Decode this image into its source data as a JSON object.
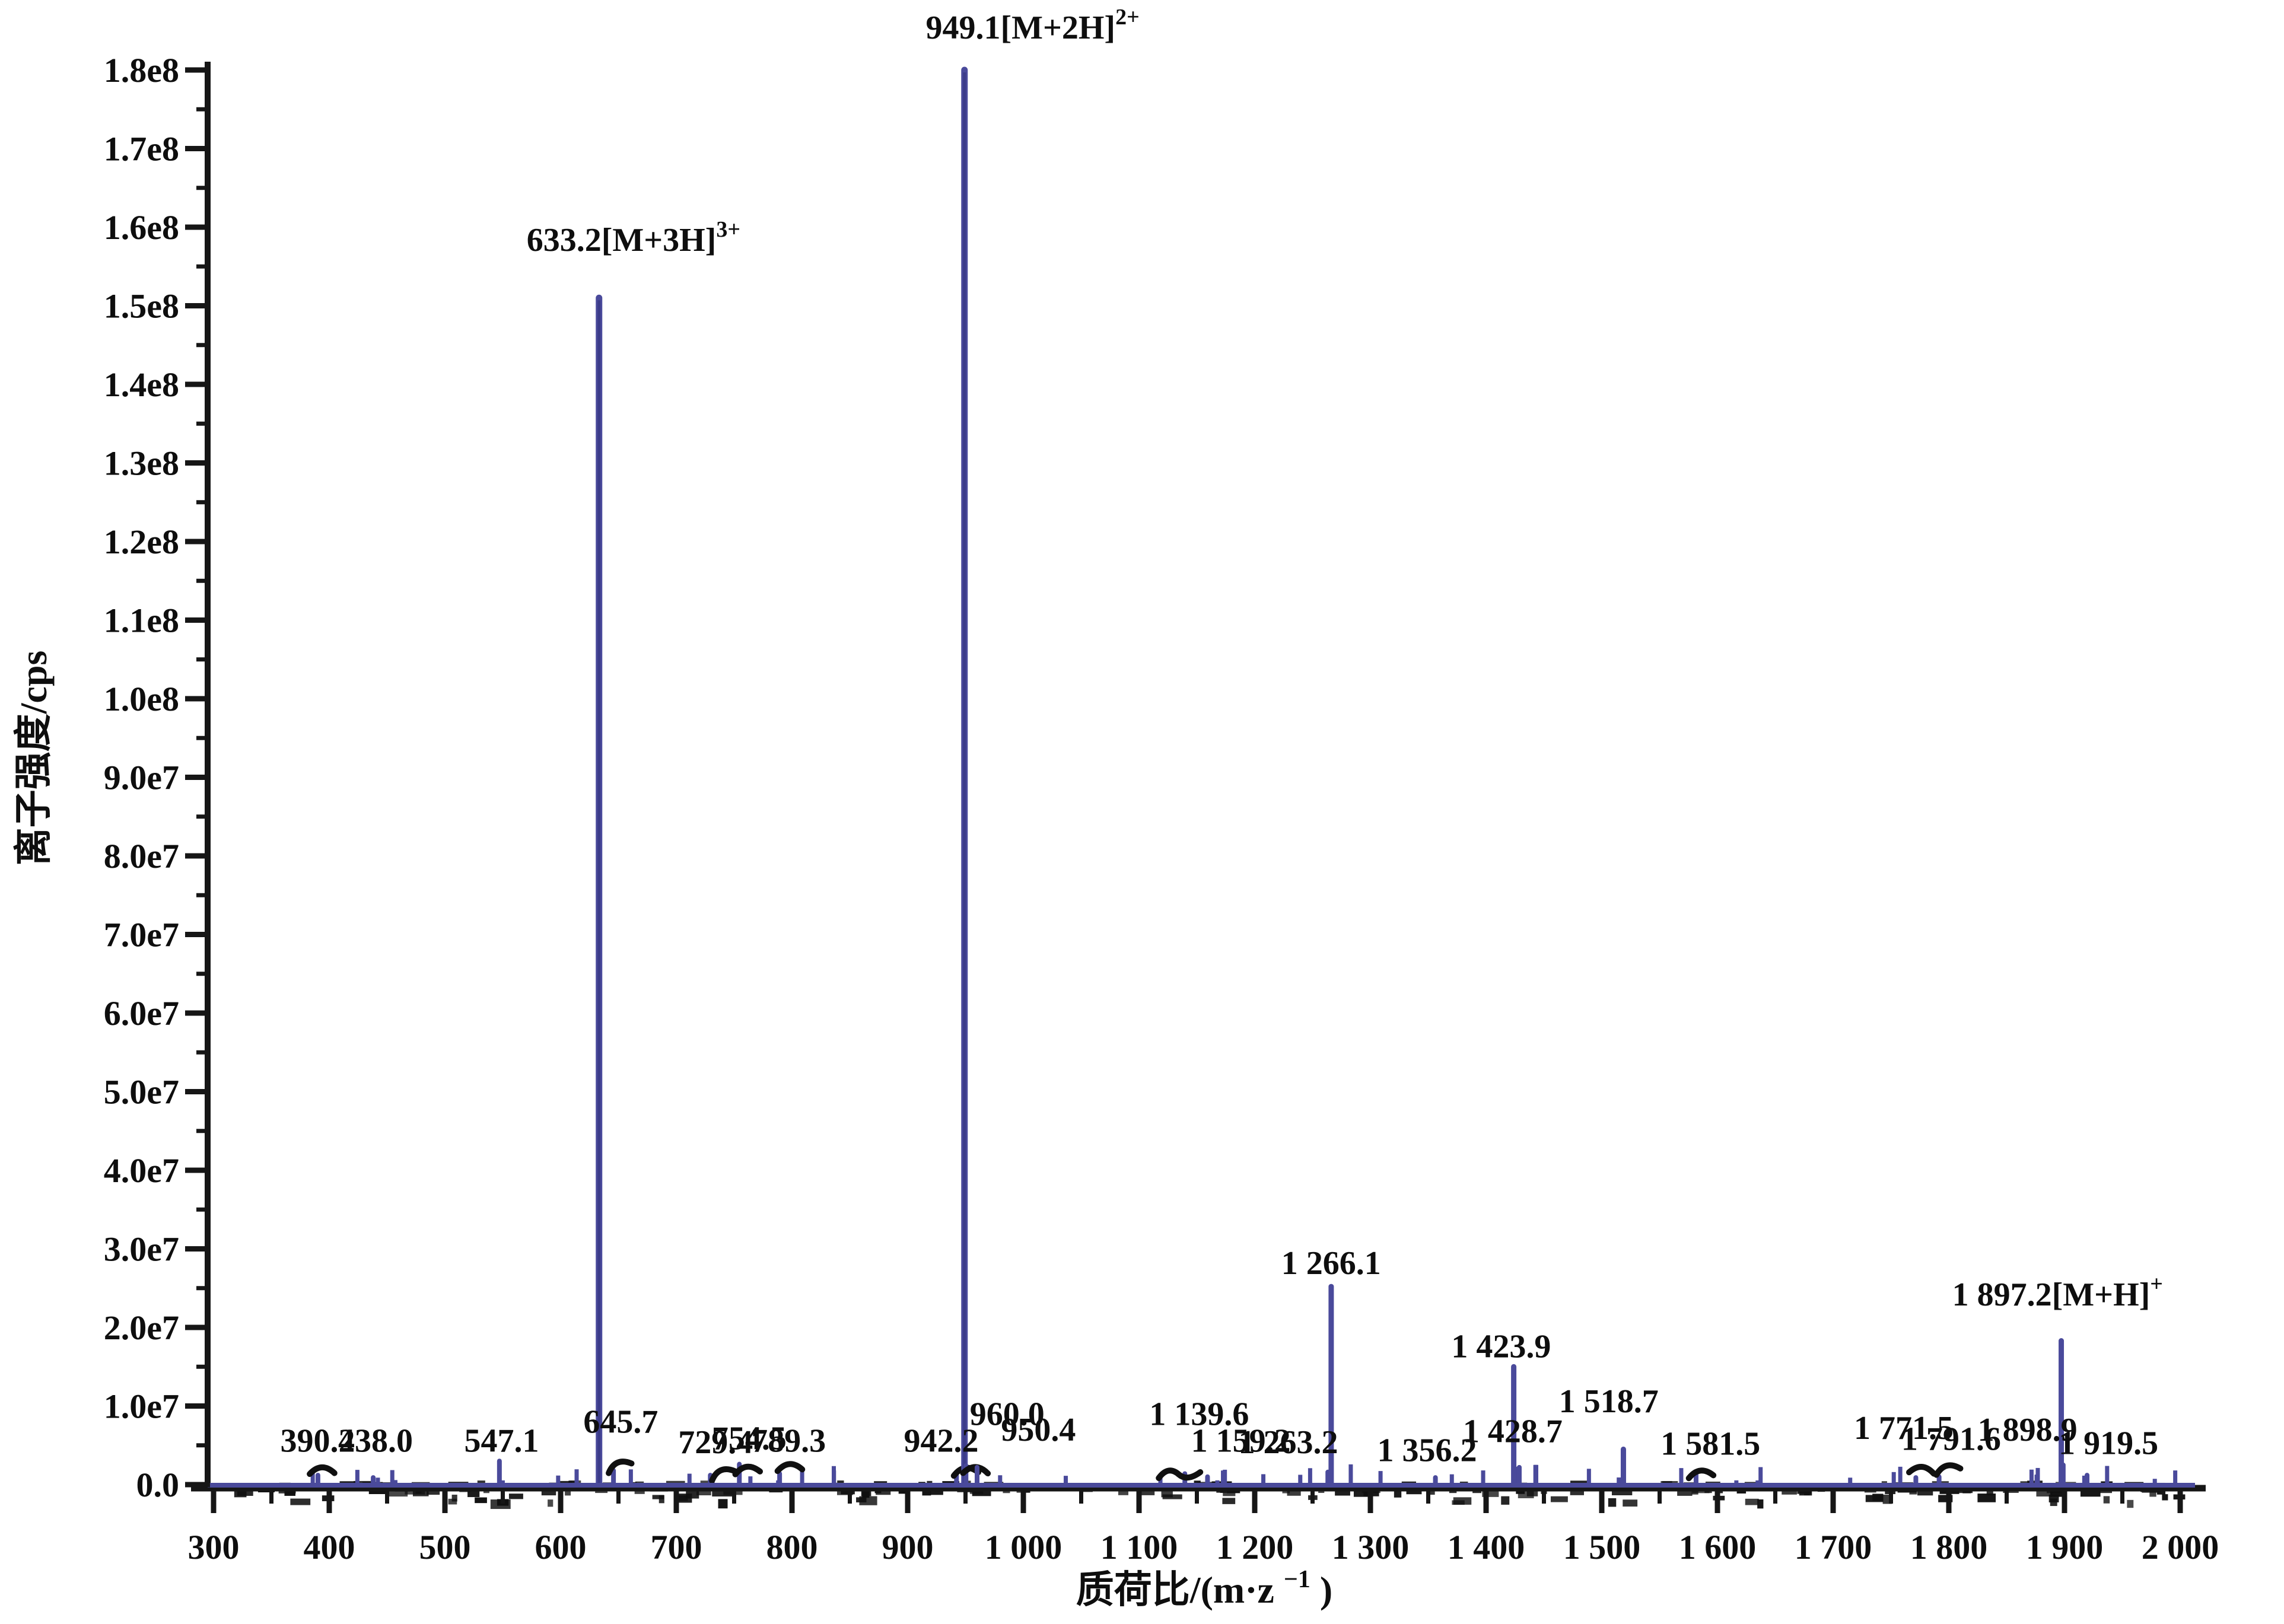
{
  "figure": {
    "background": "#ffffff"
  },
  "chart_data": {
    "type": "bar",
    "subtype": "mass-spectrum-sticks",
    "title": "",
    "ylabel": "离子强度/cps",
    "xlabel_main": "质荷比/(m·z",
    "xlabel_sup": "−1",
    "xlabel_close": ")",
    "xlim": [
      300,
      2000
    ],
    "ylim": [
      0,
      180000000
    ],
    "x_major_step": 100,
    "x_minor_step": 50,
    "y_major_step": 10000000,
    "y_minor_step": 5000000,
    "grid": false,
    "legend": null,
    "baseline_noise": true,
    "colors": {
      "peak": "#4a4a9b",
      "peak_core": "#3c3c8a",
      "axis": "#161616",
      "text": "#0e0e0e",
      "noise": "#101010",
      "background": "#ffffff"
    },
    "x_ticks": [
      {
        "v": 300,
        "label": "300"
      },
      {
        "v": 400,
        "label": "400"
      },
      {
        "v": 500,
        "label": "500"
      },
      {
        "v": 600,
        "label": "600"
      },
      {
        "v": 700,
        "label": "700"
      },
      {
        "v": 800,
        "label": "800"
      },
      {
        "v": 900,
        "label": "900"
      },
      {
        "v": 1000,
        "label": "1 000"
      },
      {
        "v": 1100,
        "label": "1 100"
      },
      {
        "v": 1200,
        "label": "1 200"
      },
      {
        "v": 1300,
        "label": "1 300"
      },
      {
        "v": 1400,
        "label": "1 400"
      },
      {
        "v": 1500,
        "label": "1 500"
      },
      {
        "v": 1600,
        "label": "1 600"
      },
      {
        "v": 1700,
        "label": "1 700"
      },
      {
        "v": 1800,
        "label": "1 800"
      },
      {
        "v": 1900,
        "label": "1 900"
      },
      {
        "v": 2000,
        "label": "2 000"
      }
    ],
    "y_ticks": [
      {
        "v": 0,
        "label": "0.0"
      },
      {
        "v": 10000000,
        "label": "1.0e7"
      },
      {
        "v": 20000000,
        "label": "2.0e7"
      },
      {
        "v": 30000000,
        "label": "3.0e7"
      },
      {
        "v": 40000000,
        "label": "4.0e7"
      },
      {
        "v": 50000000,
        "label": "5.0e7"
      },
      {
        "v": 60000000,
        "label": "6.0e7"
      },
      {
        "v": 70000000,
        "label": "7.0e7"
      },
      {
        "v": 80000000,
        "label": "8.0e7"
      },
      {
        "v": 90000000,
        "label": "9.0e7"
      },
      {
        "v": 100000000,
        "label": "1.0e8"
      },
      {
        "v": 110000000,
        "label": "1.1e8"
      },
      {
        "v": 120000000,
        "label": "1.2e8"
      },
      {
        "v": 130000000,
        "label": "1.3e8"
      },
      {
        "v": 140000000,
        "label": "1.4e8"
      },
      {
        "v": 150000000,
        "label": "1.5e8"
      },
      {
        "v": 160000000,
        "label": "1.6e8"
      },
      {
        "v": 170000000,
        "label": "1.7e8"
      },
      {
        "v": 180000000,
        "label": "1.8e8"
      }
    ],
    "peaks": [
      {
        "mz": 390.2,
        "intensity": 1200000,
        "label": "390.2",
        "sup": null,
        "label_x": 390,
        "label_y": 4200000,
        "squiggle": 1
      },
      {
        "mz": 438.0,
        "intensity": 900000,
        "label": "438.0",
        "sup": null,
        "label_x": 440,
        "label_y": 4200000,
        "squiggle": 0
      },
      {
        "mz": 547.1,
        "intensity": 3000000,
        "label": "547.1",
        "sup": null,
        "label_x": 549,
        "label_y": 4200000,
        "squiggle": 0
      },
      {
        "mz": 633.2,
        "intensity": 151000000,
        "label": "633.2[M+3H]",
        "sup": "3+",
        "label_x": 663,
        "label_y": 157000000,
        "squiggle": 0
      },
      {
        "mz": 645.7,
        "intensity": 1800000,
        "label": "645.7",
        "sup": null,
        "label_x": 652,
        "label_y": 6600000,
        "squiggle": 1
      },
      {
        "mz": 729.4,
        "intensity": 1200000,
        "label": "729.4",
        "sup": null,
        "label_x": 734,
        "label_y": 4000000,
        "squiggle": 1
      },
      {
        "mz": 754.5,
        "intensity": 2600000,
        "label": "754.5",
        "sup": null,
        "label_x": 763,
        "label_y": 4500000,
        "squiggle": 1
      },
      {
        "mz": 789.3,
        "intensity": 1400000,
        "label": "789.3",
        "sup": null,
        "label_x": 797,
        "label_y": 4200000,
        "squiggle": 1
      },
      {
        "mz": 942.2,
        "intensity": 1200000,
        "label": "942.2",
        "sup": null,
        "label_x": 929,
        "label_y": 4200000,
        "squiggle": 1
      },
      {
        "mz": 949.1,
        "intensity": 180000000,
        "label": "949.1[M+2H]",
        "sup": "2+",
        "label_x": 1008,
        "label_y": 184000000,
        "squiggle": 0
      },
      {
        "mz": 950.4,
        "intensity": 2400000,
        "label": "950.4",
        "sup": null,
        "label_x": 1013,
        "label_y": 5600000,
        "squiggle": 1
      },
      {
        "mz": 960.0,
        "intensity": 2200000,
        "label": "960.0",
        "sup": null,
        "label_x": 986,
        "label_y": 7600000,
        "squiggle": 0
      },
      {
        "mz": 1139.6,
        "intensity": 1400000,
        "label": "1 139.6",
        "sup": null,
        "label_x": 1152,
        "label_y": 7600000,
        "squiggle": 2
      },
      {
        "mz": 1159.2,
        "intensity": 1000000,
        "label": "1 159.2",
        "sup": null,
        "label_x": 1188,
        "label_y": 4200000,
        "squiggle": 0
      },
      {
        "mz": 1263.2,
        "intensity": 1600000,
        "label": "1 263.2",
        "sup": null,
        "label_x": 1229,
        "label_y": 4000000,
        "squiggle": 0
      },
      {
        "mz": 1266.1,
        "intensity": 25200000,
        "label": "1 266.1",
        "sup": null,
        "label_x": 1266,
        "label_y": 26800000,
        "squiggle": 0
      },
      {
        "mz": 1356.2,
        "intensity": 900000,
        "label": "1 356.2",
        "sup": null,
        "label_x": 1349,
        "label_y": 3000000,
        "squiggle": 0
      },
      {
        "mz": 1423.9,
        "intensity": 15000000,
        "label": "1 423.9",
        "sup": null,
        "label_x": 1413,
        "label_y": 16200000,
        "squiggle": 0
      },
      {
        "mz": 1428.7,
        "intensity": 2200000,
        "label": "1 428.7",
        "sup": null,
        "label_x": 1423,
        "label_y": 5400000,
        "squiggle": 0
      },
      {
        "mz": 1518.7,
        "intensity": 4500000,
        "label": "1 518.7",
        "sup": null,
        "label_x": 1506,
        "label_y": 9200000,
        "squiggle": 0
      },
      {
        "mz": 1581.5,
        "intensity": 1400000,
        "label": "1 581.5",
        "sup": null,
        "label_x": 1594,
        "label_y": 3800000,
        "squiggle": 1
      },
      {
        "mz": 1771.5,
        "intensity": 900000,
        "label": "1 771.5",
        "sup": null,
        "label_x": 1761,
        "label_y": 5800000,
        "squiggle": 1
      },
      {
        "mz": 1791.6,
        "intensity": 1000000,
        "label": "1 791.6",
        "sup": null,
        "label_x": 1802,
        "label_y": 4400000,
        "squiggle": 1
      },
      {
        "mz": 1897.2,
        "intensity": 18300000,
        "label": "1 897.2[M+H]",
        "sup": "+",
        "label_x": 1894,
        "label_y": 22800000,
        "squiggle": 0
      },
      {
        "mz": 1898.9,
        "intensity": 2500000,
        "label": "1 898.9",
        "sup": null,
        "label_x": 1868,
        "label_y": 5600000,
        "squiggle": 0
      },
      {
        "mz": 1919.5,
        "intensity": 1200000,
        "label": "1 919.5",
        "sup": null,
        "label_x": 1938,
        "label_y": 3900000,
        "squiggle": 0
      }
    ]
  }
}
